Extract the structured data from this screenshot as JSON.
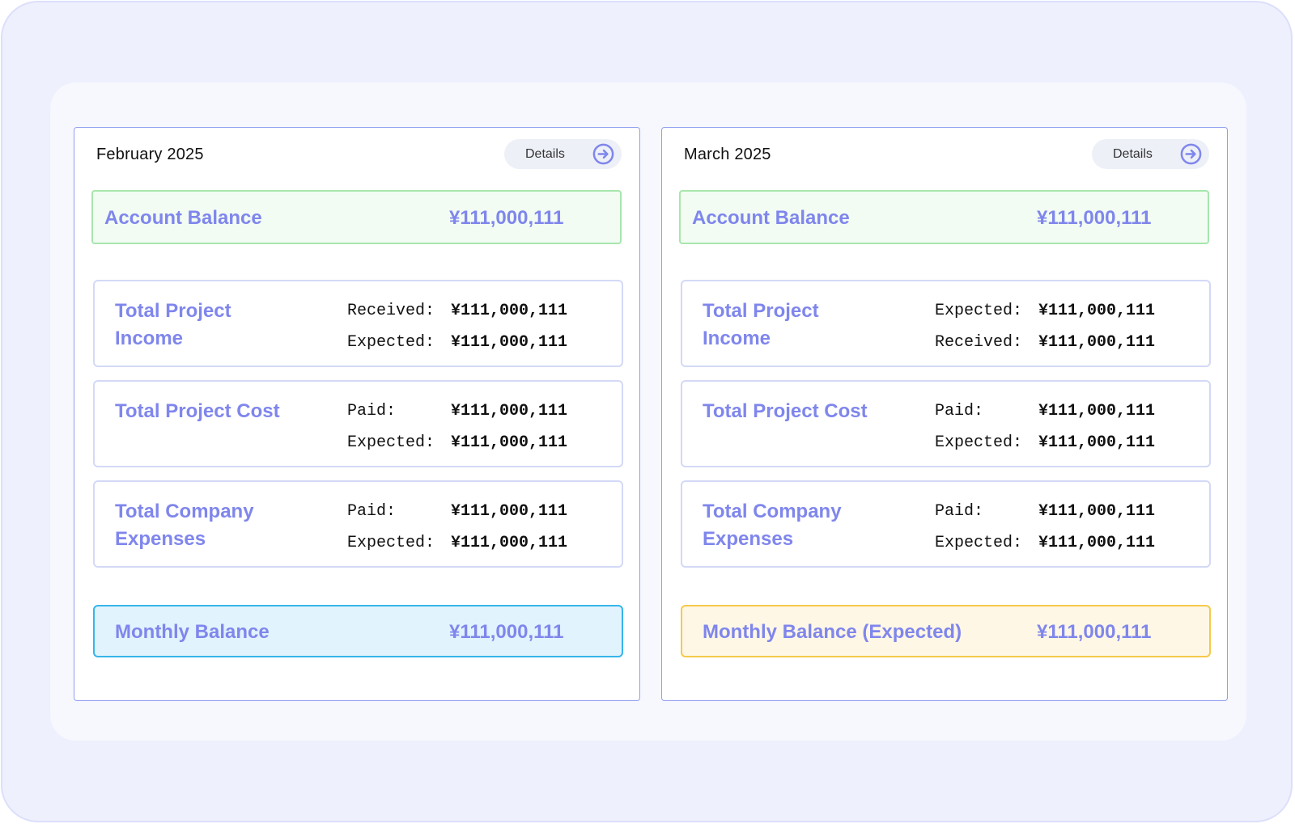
{
  "colors": {
    "accent": "#7f86ec",
    "card_border": "#8f9ef0",
    "account_bg": "#f2fcf3",
    "account_border": "#a8e6ad",
    "monthly_blue_bg": "#e1f3fd",
    "monthly_blue_border": "#36b5ea",
    "monthly_yellow_bg": "#fff7e5",
    "monthly_yellow_border": "#f6c94a"
  },
  "feb": {
    "title": "February 2025",
    "details_label": "Details",
    "details_icon": "arrow-right-circle-icon",
    "account": {
      "label": "Account Balance",
      "value": "¥111,000,111"
    },
    "income": {
      "title": "Total Project Income",
      "row1_label": "Received:",
      "row1_value": "¥111,000,111",
      "row2_label": "Expected:",
      "row2_value": "¥111,000,111"
    },
    "cost": {
      "title": "Total Project Cost",
      "row1_label": "Paid:",
      "row1_value": "¥111,000,111",
      "row2_label": "Expected:",
      "row2_value": "¥111,000,111"
    },
    "expenses": {
      "title": "Total Company Expenses",
      "row1_label": "Paid:",
      "row1_value": "¥111,000,111",
      "row2_label": "Expected:",
      "row2_value": "¥111,000,111"
    },
    "monthly": {
      "label": "Monthly Balance",
      "value": "¥111,000,111"
    }
  },
  "mar": {
    "title": "March 2025",
    "details_label": "Details",
    "details_icon": "arrow-right-circle-icon",
    "account": {
      "label": "Account Balance",
      "value": "¥111,000,111"
    },
    "income": {
      "title": "Total Project Income",
      "row1_label": "Expected:",
      "row1_value": "¥111,000,111",
      "row2_label": "Received:",
      "row2_value": "¥111,000,111"
    },
    "cost": {
      "title": "Total Project Cost",
      "row1_label": "Paid:",
      "row1_value": "¥111,000,111",
      "row2_label": "Expected:",
      "row2_value": "¥111,000,111"
    },
    "expenses": {
      "title": "Total Company Expenses",
      "row1_label": "Paid:",
      "row1_value": "¥111,000,111",
      "row2_label": "Expected:",
      "row2_value": "¥111,000,111"
    },
    "monthly": {
      "label": "Monthly Balance (Expected)",
      "value": "¥111,000,111"
    }
  }
}
